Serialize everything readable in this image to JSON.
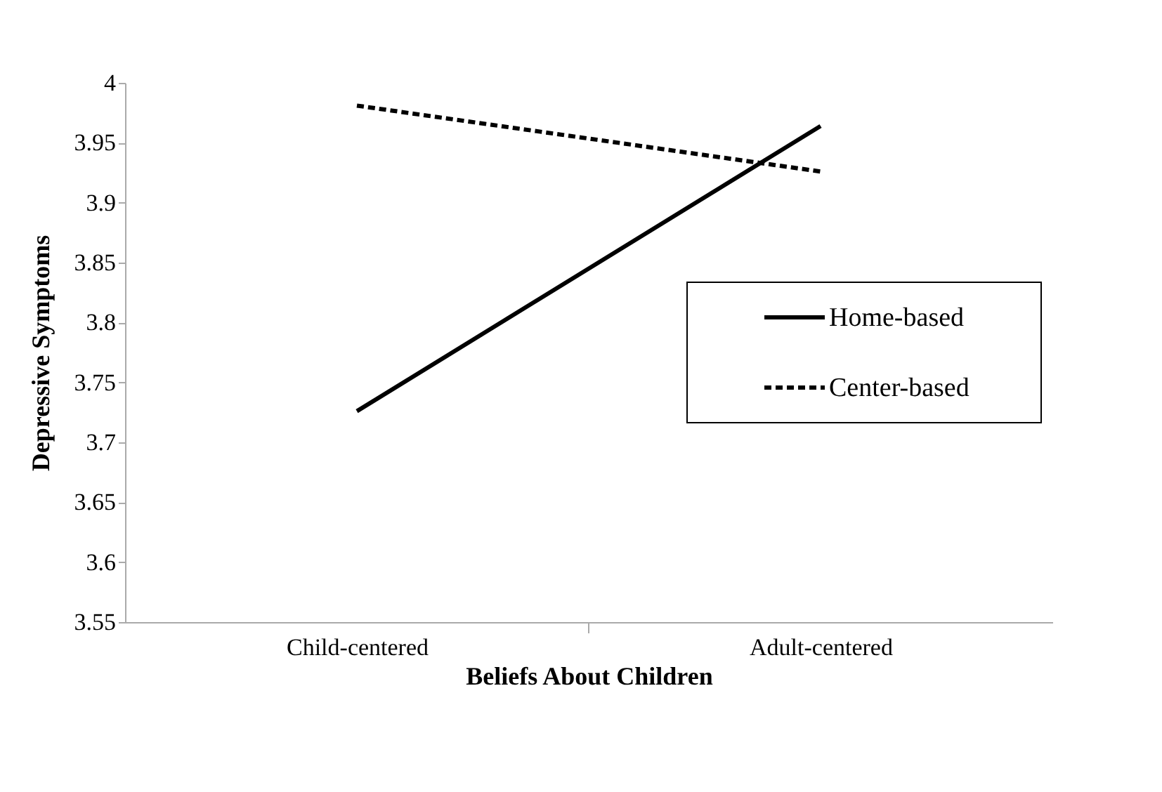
{
  "chart_data": {
    "type": "line",
    "xlabel": "Beliefs About Children",
    "ylabel": "Depressive Symptoms",
    "categories": [
      "Child-centered",
      "Adult-centered"
    ],
    "series": [
      {
        "name": "Home-based",
        "color": "#000000",
        "values": [
          3.726,
          3.964
        ],
        "line_style": "solid"
      },
      {
        "name": "Center-based",
        "color": "#000000",
        "values": [
          3.981,
          3.926
        ],
        "line_style": "dashed"
      }
    ],
    "ylim": [
      3.55,
      4
    ],
    "yticks": [
      3.55,
      3.6,
      3.65,
      3.7,
      3.75,
      3.8,
      3.85,
      3.9,
      3.95,
      4
    ],
    "grid": false,
    "legend": "right",
    "marker": "none"
  }
}
